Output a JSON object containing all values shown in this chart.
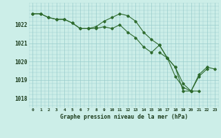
{
  "title": "Graphe pression niveau de la mer (hPa)",
  "background_color": "#cceee8",
  "grid_color": "#99cccc",
  "line_color": "#2d6a2d",
  "ylim": [
    1017.5,
    1023.2
  ],
  "yticks": [
    1018,
    1019,
    1020,
    1021,
    1022
  ],
  "xlim": [
    -0.5,
    23.5
  ],
  "series1": [
    1022.6,
    1022.6,
    1022.4,
    1022.3,
    1022.3,
    1022.1,
    1021.8,
    1021.8,
    1021.8,
    1021.9,
    1021.8,
    1022.0,
    1021.6,
    1021.3,
    1020.8,
    1020.5,
    1020.9,
    1020.2,
    1019.7,
    1018.4,
    1018.4,
    1019.2,
    1019.6,
    null
  ],
  "series2": [
    1022.6,
    1022.6,
    1022.4,
    1022.3,
    1022.3,
    1022.1,
    1021.8,
    1021.8,
    1021.9,
    1022.2,
    1022.4,
    1022.6,
    1022.5,
    1022.2,
    1021.6,
    1021.2,
    1020.9,
    1020.2,
    1019.2,
    1018.6,
    1018.4,
    1018.4,
    null,
    null
  ],
  "series3": [
    null,
    null,
    null,
    null,
    null,
    null,
    null,
    null,
    null,
    null,
    null,
    null,
    null,
    null,
    null,
    null,
    1020.5,
    1020.2,
    1019.7,
    1018.8,
    1018.4,
    1019.3,
    1019.7,
    1019.6
  ],
  "x_labels": [
    "0",
    "1",
    "2",
    "3",
    "4",
    "5",
    "6",
    "7",
    "8",
    "9",
    "10",
    "11",
    "12",
    "13",
    "14",
    "15",
    "16",
    "17",
    "18",
    "19",
    "20",
    "21",
    "22",
    "23"
  ]
}
